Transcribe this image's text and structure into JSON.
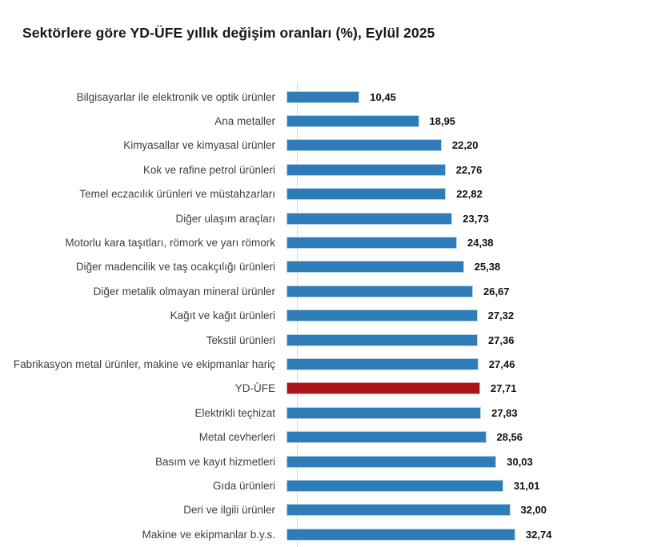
{
  "title": "Sektörlere göre YD-ÜFE yıllık değişim oranları (%), Eylül 2025",
  "chart_data": {
    "type": "bar",
    "orientation": "horizontal",
    "title": "Sektörlere göre YD-ÜFE yıllık değişim oranları (%), Eylül 2025",
    "unit": "%",
    "period": "Eylül 2025",
    "xlim": [
      0,
      33
    ],
    "grid": false,
    "legend": "none",
    "highlight_category": "YD-ÜFE",
    "colors": {
      "bar": "#2f7db8",
      "highlight_bar": "#ad1419",
      "axis_line": "#d9d9d9",
      "category_text": "#3f3f3f",
      "value_text": "#111111",
      "title_text": "#15171f"
    },
    "categories": [
      "Bilgisayarlar ile elektronik ve optik ürünler",
      "Ana metaller",
      "Kimyasallar ve kimyasal ürünler",
      "Kok ve rafine petrol ürünleri",
      "Temel eczacılık ürünleri ve müstahzarları",
      "Diğer ulaşım araçları",
      "Motorlu kara taşıtları, römork ve yarı römork",
      "Diğer madencilik ve taş ocakçılığı ürünleri",
      "Diğer metalik olmayan mineral ürünler",
      "Kağıt ve kağıt ürünleri",
      "Tekstil ürünleri",
      "Fabrikasyon metal ürünler, makine ve ekipmanlar hariç",
      "YD-ÜFE",
      "Elektrikli teçhizat",
      "Metal cevherleri",
      "Basım ve kayıt hizmetleri",
      "Gıda ürünleri",
      "Deri ve ilgili ürünler",
      "Makine ve ekipmanlar b.y.s."
    ],
    "values": [
      10.45,
      18.95,
      22.2,
      22.76,
      22.82,
      23.73,
      24.38,
      25.38,
      26.67,
      27.32,
      27.36,
      27.46,
      27.71,
      27.83,
      28.56,
      30.03,
      31.01,
      32.0,
      32.74
    ],
    "value_labels": [
      "10,45",
      "18,95",
      "22,20",
      "22,76",
      "22,82",
      "23,73",
      "24,38",
      "25,38",
      "26,67",
      "27,32",
      "27,36",
      "27,46",
      "27,71",
      "27,83",
      "28,56",
      "30,03",
      "31,01",
      "32,00",
      "32,74"
    ]
  }
}
